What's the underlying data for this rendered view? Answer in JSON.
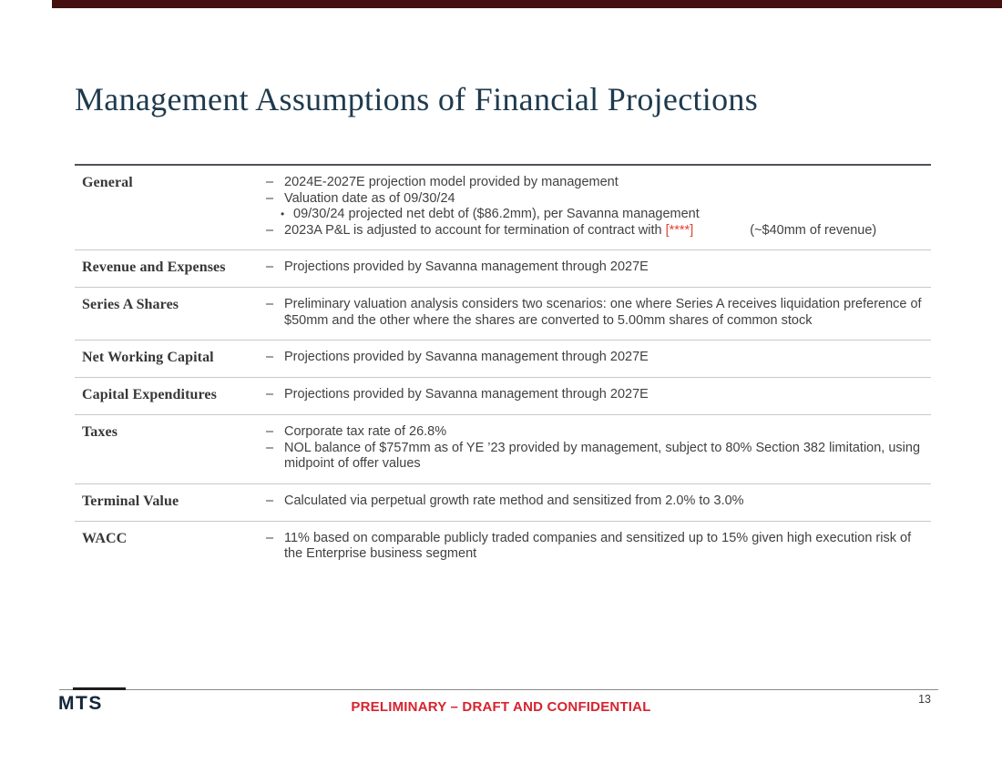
{
  "colors": {
    "accent_bar": "#451110",
    "title_navy": "#1e3a4e",
    "brand_navy": "#14273a",
    "redaction_red": "#e04335",
    "footer_red": "#d7232e"
  },
  "markers": {
    "dash": "–",
    "dot": "•"
  },
  "slide": {
    "title": "Management Assumptions of Financial Projections"
  },
  "table": {
    "rows": [
      {
        "header": "General",
        "items": [
          {
            "text": "2024E-2027E projection model provided by management"
          },
          {
            "text": "Valuation date as of 09/30/24"
          },
          {
            "text": "09/30/24 projected net debt of ($86.2mm), per Savanna management"
          },
          {
            "prefix": "2023A P&L is adjusted to account for termination of contract with ",
            "redacted": "[****]",
            "note": "(~$40mm of revenue)"
          }
        ]
      },
      {
        "header": "Revenue and Expenses",
        "items": [
          {
            "text": "Projections provided by Savanna management through 2027E"
          }
        ]
      },
      {
        "header": "Series A Shares",
        "items": [
          {
            "text": "Preliminary valuation analysis considers two scenarios: one where Series A receives liquidation preference of $50mm and the other where the shares are converted to 5.00mm shares of common stock"
          }
        ]
      },
      {
        "header": "Net Working Capital",
        "items": [
          {
            "text": "Projections provided by Savanna management through 2027E"
          }
        ]
      },
      {
        "header": "Capital Expenditures",
        "items": [
          {
            "text": "Projections provided by Savanna management through 2027E"
          }
        ]
      },
      {
        "header": "Taxes",
        "items": [
          {
            "text": "Corporate tax rate of 26.8%"
          },
          {
            "text": "NOL balance of $757mm as of YE ’23 provided by management, subject to 80% Section 382 limitation, using midpoint of offer values"
          }
        ]
      },
      {
        "header": "Terminal Value",
        "items": [
          {
            "text": "Calculated via perpetual growth rate method and sensitized from 2.0% to 3.0%"
          }
        ]
      },
      {
        "header": "WACC",
        "items": [
          {
            "text": "11% based on comparable publicly traded companies and sensitized up to 15% given high execution risk of the Enterprise business segment"
          }
        ]
      }
    ]
  },
  "footer": {
    "logo": "MTS",
    "confidential": "PRELIMINARY – DRAFT AND CONFIDENTIAL",
    "page_number": "13"
  }
}
